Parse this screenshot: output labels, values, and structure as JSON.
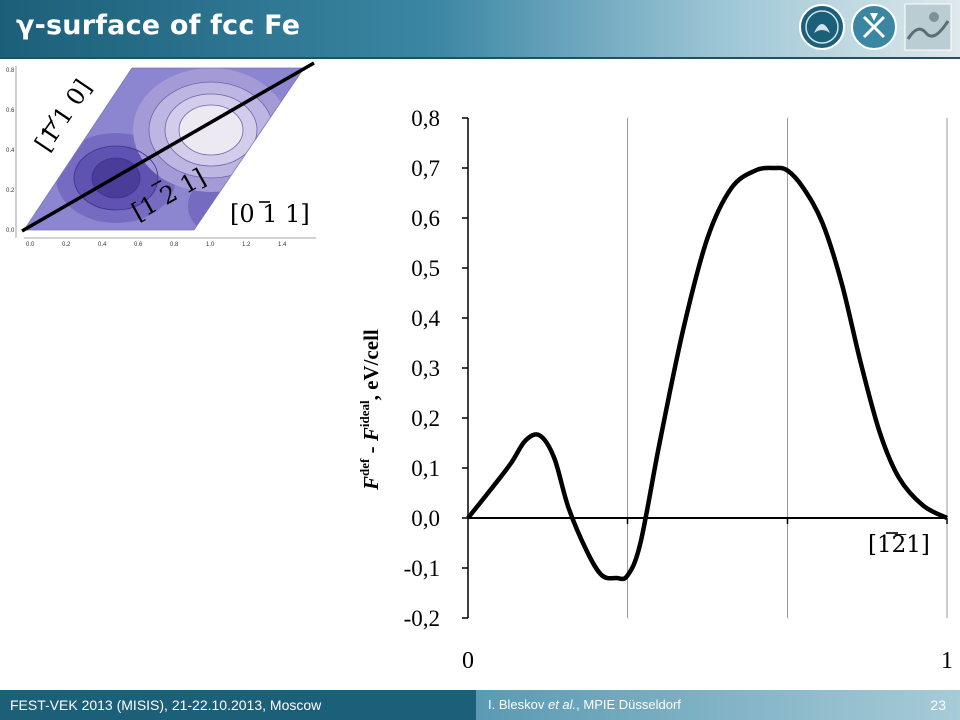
{
  "slide": {
    "title": "γ-surface of fcc Fe",
    "footer_left": "FEST-VEK 2013 (MISIS), 21-22.10.2013, Moscow",
    "footer_author_prefix": "I. Bleskov ",
    "footer_author_etal": "et al.",
    "footer_author_suffix": ", MPIE Düsseldorf",
    "page_number": "23"
  },
  "inset": {
    "direction_labels": [
      "[1̅1̅0]",
      "[12̅1]",
      "[01̅1]"
    ],
    "direction_labels_display": [
      "[1 1 0]",
      "[1 2 1]",
      "[0 1 1]"
    ],
    "x_ticks": [
      "0.0",
      "0.2",
      "0.4",
      "0.6",
      "0.8",
      "1.0",
      "1.2",
      "1.4"
    ],
    "y_ticks": [
      "0.0",
      "0.2",
      "0.4",
      "0.6",
      "0.8"
    ],
    "colors": {
      "light": "#ece9f3",
      "mid": "#a49ad6",
      "dark": "#4a3c99",
      "base": "#8c85cf"
    }
  },
  "chart_data": {
    "type": "line",
    "ylabel_main": "F",
    "ylabel_sup1": "def",
    "ylabel_minus": " - ",
    "ylabel_main2": "F",
    "ylabel_sup2": "ideal",
    "ylabel_unit": ", eV/cell",
    "xlabel": "[12̅1]",
    "x_tick_labels": [
      "0",
      "1"
    ],
    "y_tick_labels": [
      "0,8",
      "0,7",
      "0,6",
      "0,5",
      "0,4",
      "0,3",
      "0,2",
      "0,1",
      "0,0",
      "-0,1",
      "-0,2"
    ],
    "xlim": [
      0,
      1
    ],
    "ylim": [
      -0.2,
      0.8
    ],
    "gridlines_x": [
      0.333,
      0.667,
      1.0
    ],
    "series": [
      {
        "x": [
          0.0,
          0.05,
          0.09,
          0.12,
          0.15,
          0.18,
          0.21,
          0.25,
          0.28,
          0.31,
          0.333,
          0.36,
          0.4,
          0.45,
          0.5,
          0.55,
          0.6,
          0.64,
          0.667,
          0.7,
          0.74,
          0.78,
          0.82,
          0.86,
          0.9,
          0.95,
          1.0
        ],
        "y": [
          0.0,
          0.06,
          0.11,
          0.155,
          0.165,
          0.12,
          0.02,
          -0.07,
          -0.115,
          -0.12,
          -0.115,
          -0.05,
          0.15,
          0.38,
          0.56,
          0.66,
          0.695,
          0.7,
          0.695,
          0.66,
          0.59,
          0.47,
          0.31,
          0.17,
          0.08,
          0.025,
          0.0
        ],
        "color": "#000000"
      }
    ]
  }
}
